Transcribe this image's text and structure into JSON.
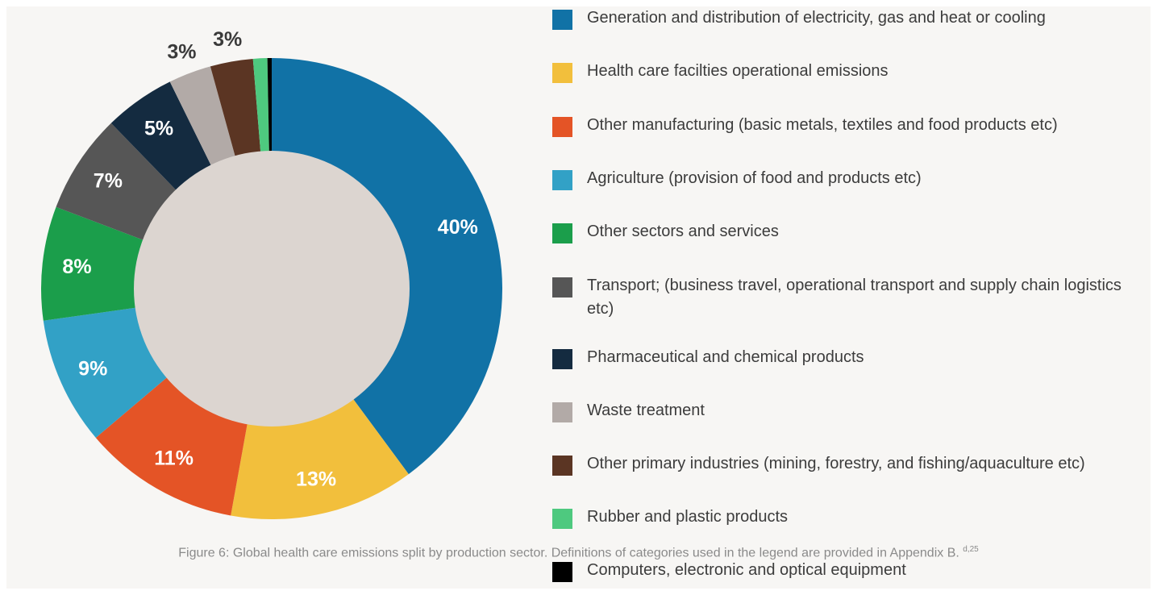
{
  "chart_data": {
    "type": "pie",
    "style": "donut",
    "categories": [
      "Generation and distribution of electricity, gas and heat or cooling",
      "Health care facilties operational emissions",
      "Other manufacturing (basic metals, textiles and food products etc)",
      "Agriculture (provision of food and products etc)",
      "Other sectors and services",
      "Transport; (business travel, operational transport and supply chain logistics etc)",
      "Pharmaceutical and chemical products",
      "Waste treatment",
      "Other primary industries (mining, forestry, and fishing/aquaculture etc)",
      "Rubber and plastic products",
      "Computers, electronic and optical equipment"
    ],
    "values": [
      40,
      13,
      11,
      9,
      8,
      7,
      5,
      3,
      3,
      1,
      0.3
    ],
    "labels": [
      "40%",
      "13%",
      "11%",
      "9%",
      "8%",
      "7%",
      "5%",
      "3%",
      "3%",
      "",
      ""
    ],
    "colors": [
      "#1172a6",
      "#f2bf3c",
      "#e45426",
      "#32a1c6",
      "#1b9e4b",
      "#565656",
      "#142b40",
      "#b2aaa7",
      "#5b3523",
      "#4ec97f",
      "#000000"
    ],
    "label_colors": [
      "#ffffff",
      "#ffffff",
      "#ffffff",
      "#ffffff",
      "#ffffff",
      "#ffffff",
      "#ffffff",
      "#3a3a3a",
      "#3a3a3a",
      "#ffffff",
      "#ffffff"
    ],
    "center_color": "#dcd5d0",
    "legend_position": "right"
  },
  "caption": {
    "text": "Figure 6: Global health care emissions split by production sector. Definitions of categories used in the legend are provided in Appendix B.",
    "superscript": "d,25"
  }
}
